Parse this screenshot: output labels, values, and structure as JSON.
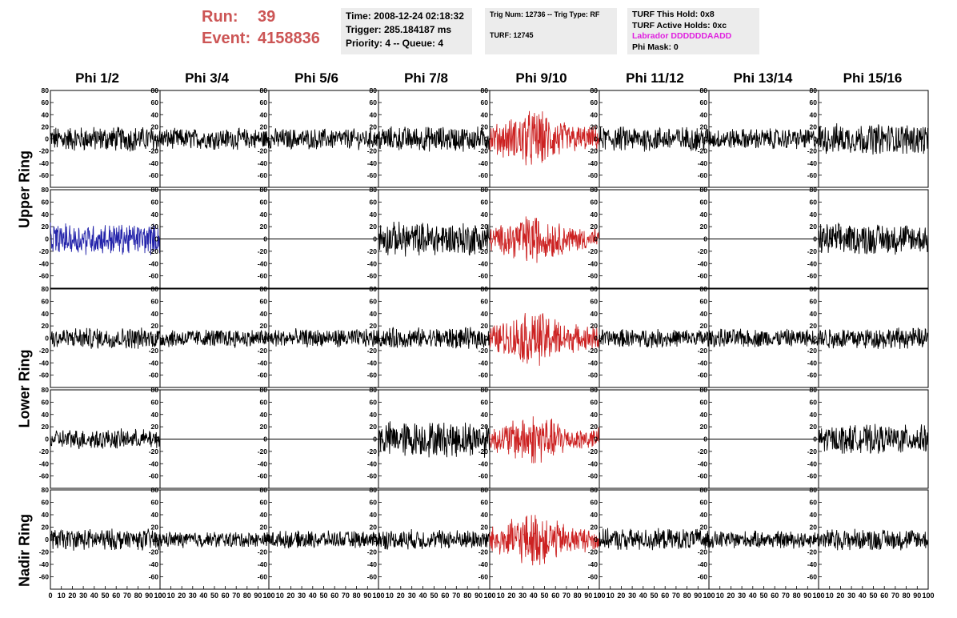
{
  "header": {
    "run_label": "Run:",
    "run_value": "39",
    "event_label": "Event:",
    "event_value": "4158836",
    "time": "Time: 2008-12-24 02:18:32",
    "trigger": "Trigger: 285.184187 ms",
    "priority": "Priority: 4 -- Queue: 4",
    "trig_num": "Trig Num: 12736 -- Trig Type: RF",
    "turf": "TURF: 12745",
    "turf_this_hold": "TURF This Hold: 0x8",
    "turf_active_holds": "TURF Active Holds: 0xc",
    "labrador": "Labrador DDDDDDAADD",
    "phi_mask": "Phi Mask: 0"
  },
  "columns": [
    "Phi 1/2",
    "Phi 3/4",
    "Phi 5/6",
    "Phi 7/8",
    "Phi 9/10",
    "Phi 11/12",
    "Phi 13/14",
    "Phi 15/16"
  ],
  "ring_labels": [
    "Upper Ring",
    "Lower Ring",
    "Nadir Ring"
  ],
  "colors": {
    "normal": "#000000",
    "triggered": "#cc2222",
    "selected": "#2222aa",
    "run_text": "#cc5555",
    "labrador": "#e020e0",
    "panel_bg": "#ececec"
  },
  "chart_data": {
    "type": "line",
    "xlim": [
      0,
      100
    ],
    "ylim": [
      -80,
      80
    ],
    "y_ticks": [
      -60,
      -40,
      -20,
      0,
      20,
      40,
      60,
      80
    ],
    "x_ticks": [
      0,
      10,
      20,
      30,
      40,
      50,
      60,
      70,
      80,
      90,
      100
    ],
    "rows": [
      {
        "name": "Upper Ring top",
        "amplitudes": [
          18,
          15,
          15,
          18,
          30,
          18,
          15,
          22
        ],
        "colors": [
          "normal",
          "normal",
          "normal",
          "normal",
          "triggered",
          "normal",
          "normal",
          "normal"
        ]
      },
      {
        "name": "Upper Ring bottom",
        "amplitudes": [
          22,
          0,
          0,
          24,
          25,
          0,
          0,
          22
        ],
        "colors": [
          "selected",
          "normal",
          "normal",
          "normal",
          "triggered",
          "normal",
          "normal",
          "normal"
        ]
      },
      {
        "name": "Lower Ring top",
        "amplitudes": [
          15,
          13,
          13,
          15,
          28,
          13,
          13,
          15
        ],
        "colors": [
          "normal",
          "normal",
          "normal",
          "normal",
          "triggered",
          "normal",
          "normal",
          "normal"
        ]
      },
      {
        "name": "Lower Ring bottom",
        "amplitudes": [
          14,
          0,
          0,
          25,
          26,
          0,
          0,
          20
        ],
        "colors": [
          "normal",
          "normal",
          "normal",
          "normal",
          "triggered",
          "normal",
          "normal",
          "normal"
        ]
      },
      {
        "name": "Nadir Ring",
        "amplitudes": [
          15,
          11,
          12,
          14,
          27,
          15,
          12,
          15
        ],
        "colors": [
          "normal",
          "normal",
          "normal",
          "normal",
          "triggered",
          "normal",
          "normal",
          "normal"
        ]
      }
    ]
  }
}
